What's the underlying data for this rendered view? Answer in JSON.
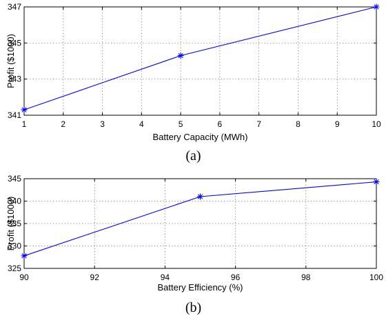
{
  "chart_data": [
    {
      "type": "line",
      "xlabel": "Battery Capacity (MWh)",
      "ylabel": "Profit ($1000)",
      "caption": "(a)",
      "xlim": [
        1,
        10
      ],
      "ylim": [
        341,
        347
      ],
      "xticks": [
        1,
        2,
        3,
        4,
        5,
        6,
        7,
        8,
        9,
        10
      ],
      "yticks": [
        341,
        343,
        345,
        347
      ],
      "grid": true,
      "series": [
        {
          "x": [
            1,
            5,
            10
          ],
          "y": [
            341.3,
            344.3,
            347.0
          ],
          "marker": "asterisk",
          "color": "#0000ff"
        }
      ]
    },
    {
      "type": "line",
      "xlabel": "Battery Efficiency (%)",
      "ylabel": "Profit ($1000)",
      "caption": "(b)",
      "xlim": [
        90,
        100
      ],
      "ylim": [
        325,
        345
      ],
      "xticks": [
        90,
        92,
        94,
        96,
        98,
        100
      ],
      "yticks": [
        325,
        330,
        335,
        340,
        345
      ],
      "grid": true,
      "series": [
        {
          "x": [
            90,
            95,
            100
          ],
          "y": [
            327.8,
            341.0,
            344.3
          ],
          "marker": "asterisk",
          "color": "#0000ff"
        }
      ]
    }
  ]
}
